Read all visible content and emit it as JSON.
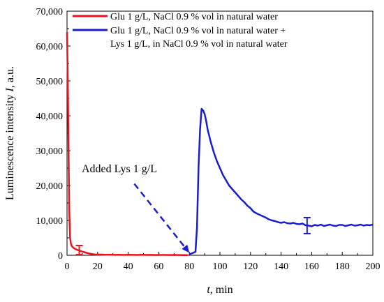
{
  "chart_data": {
    "type": "line",
    "xlabel_var": "t",
    "xlabel_unit": ", min",
    "ylabel_prefix": "Luminescence intensity ",
    "ylabel_var": "I",
    "ylabel_unit": ", a.u.",
    "xlim": [
      0,
      200
    ],
    "ylim": [
      0,
      70000
    ],
    "x_ticks": [
      0,
      20,
      40,
      60,
      80,
      100,
      120,
      140,
      160,
      180,
      200
    ],
    "x_tick_labels": [
      "0",
      "20",
      "40",
      "60",
      "80",
      "100",
      "120",
      "140",
      "160",
      "180",
      "200"
    ],
    "y_ticks": [
      0,
      10000,
      20000,
      30000,
      40000,
      50000,
      60000,
      70000
    ],
    "y_tick_labels": [
      "0",
      "10,000",
      "20,000",
      "30,000",
      "40,000",
      "50,000",
      "60,000",
      "70,000"
    ],
    "grid": false,
    "legend_position": "top-right",
    "legend": [
      {
        "color": "#e8141b",
        "lines": [
          "Glu 1 g/L, NaCl 0.9 % vol in natural water"
        ]
      },
      {
        "color": "#1c1ccf",
        "lines": [
          "Glu 1 g/L, NaCl 0.9 % vol in natural water +",
          "Lys 1 g/L, in NaCl 0.9 % vol in natural water"
        ]
      }
    ],
    "series": [
      {
        "color": "#e8141b",
        "x": [
          0,
          0.5,
          1,
          1.5,
          2,
          2.5,
          3,
          4,
          5,
          6,
          7,
          8,
          9,
          10,
          12,
          14,
          16,
          18,
          20,
          22,
          25,
          28,
          31,
          34,
          37,
          40,
          43,
          46,
          49,
          52,
          55,
          58,
          61,
          64,
          67,
          70,
          73,
          76,
          79
        ],
        "y": [
          64000,
          50000,
          30000,
          12000,
          5000,
          3500,
          2700,
          2200,
          1900,
          1700,
          1500,
          1350,
          1200,
          1050,
          800,
          550,
          350,
          250,
          200,
          220,
          150,
          180,
          120,
          160,
          110,
          150,
          120,
          100,
          140,
          90,
          120,
          80,
          110,
          90,
          70,
          100,
          80,
          60,
          50
        ],
        "error_bars": [
          {
            "x": 8,
            "y": 1500,
            "err": 1300
          }
        ]
      },
      {
        "color": "#1c1ccf",
        "x": [
          80,
          82,
          84,
          85,
          86,
          87,
          88,
          89,
          90,
          91,
          92,
          94,
          96,
          98,
          100,
          102,
          104,
          106,
          108,
          110,
          112,
          114,
          116,
          118,
          120,
          122,
          124,
          126,
          128,
          130,
          132,
          134,
          136,
          138,
          140,
          142,
          144,
          146,
          148,
          150,
          152,
          154,
          156,
          158,
          160,
          162,
          164,
          166,
          168,
          170,
          172,
          174,
          176,
          178,
          180,
          182,
          184,
          186,
          188,
          190,
          192,
          194,
          196,
          198,
          200
        ],
        "y": [
          300,
          600,
          1000,
          8000,
          25000,
          36000,
          42000,
          41500,
          40500,
          38500,
          36000,
          32500,
          29500,
          27000,
          25000,
          23000,
          21500,
          20000,
          19000,
          18000,
          17000,
          16000,
          15200,
          14200,
          13500,
          12500,
          12000,
          11600,
          11200,
          10800,
          10300,
          10000,
          9800,
          9500,
          9300,
          9500,
          9200,
          9100,
          9300,
          9000,
          8900,
          9100,
          8600,
          8500,
          8300,
          8700,
          8500,
          8800,
          8400,
          8600,
          8800,
          8500,
          8400,
          8700,
          8700,
          8400,
          8600,
          8800,
          8500,
          8600,
          8800,
          8500,
          8700,
          8600,
          8800
        ],
        "error_bars": [
          {
            "x": 157,
            "y": 8500,
            "err": 2300
          }
        ]
      }
    ],
    "annotation": {
      "text": "Added Lys 1 g/L",
      "arrow_from": [
        44,
        20500
      ],
      "arrow_to": [
        80,
        700
      ]
    }
  }
}
